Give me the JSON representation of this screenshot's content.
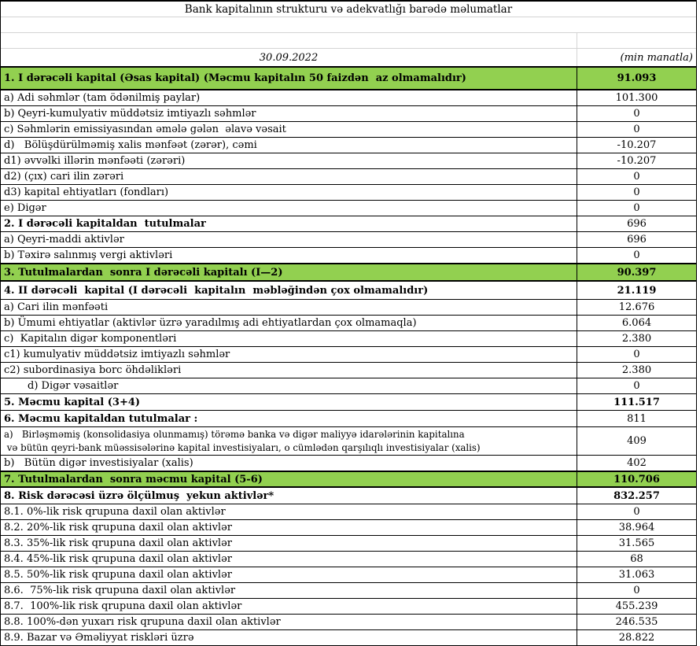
{
  "header": {
    "title": "Bank kapitalının strukturu və adekvatlığı barədə məlumatlar",
    "date": "30.09.2022",
    "unit": "(min manatla)"
  },
  "colors": {
    "section_green": "#92D050",
    "grid_gray": "#d4d4d4",
    "border_black": "#000000"
  },
  "table": {
    "rows": [
      {
        "label": "1. I dərəcəli kapital (Əsas kapital) (Məcmu kapitalın 50 faizdən  az olmamalıdır)",
        "value": "91.093",
        "green": true,
        "bold_label": true,
        "bold_value": true,
        "size": "xl"
      },
      {
        "label": "a) Adi səhmlər (tam ödənilmiş paylar)",
        "value": "101.300"
      },
      {
        "label": "b) Qeyri-kumulyativ müddətsiz imtiyazlı səhmlər",
        "value": "0"
      },
      {
        "label": "c) Səhmlərin emissiyasından əmələ gələn  əlavə vəsait",
        "value": "0"
      },
      {
        "label": "d)   Bölüşdürülməmiş xalis mənfəət (zərər), cəmi",
        "value": "-10.207"
      },
      {
        "label": "d1) əvvəlki illərin mənfəəti (zərəri)",
        "value": "-10.207",
        "small_value": true
      },
      {
        "label": "d2) (çıx) cari ilin zərəri",
        "value": "0"
      },
      {
        "label": "d3) kapital ehtiyatları (fondları)",
        "value": "0"
      },
      {
        "label": "e) Digər",
        "value": "0"
      },
      {
        "label": "2. I dərəcəli kapitaldan  tutulmalar",
        "value": "696",
        "bold_label": true
      },
      {
        "label": "a) Qeyri-maddi aktivlər",
        "value": "696",
        "small_value": true
      },
      {
        "label": "b) Təxirə salınmış vergi aktivləri",
        "value": "0",
        "small_value": true
      },
      {
        "label": "3. Tutulmalardan  sonra I dərəcəli kapitalı (I—2)",
        "value": "90.397",
        "green": true,
        "bold_label": true,
        "bold_value": true,
        "size": "lg"
      },
      {
        "label": "4. II dərəcəli  kapital (I dərəcəli  kapitalın  məbləğindən çox olmamalıdır)",
        "value": "21.119",
        "bold_label": true,
        "bold_value": true,
        "size": "lg"
      },
      {
        "label": "a) Cari ilin mənfəəti",
        "value": "12.676"
      },
      {
        "label": "b) Ümumi ehtiyatlar (aktivlər üzrə yaradılmış adi ehtiyatlardan çox olmamaqla)",
        "value": "6.064"
      },
      {
        "label": "c)  Kapitalın digər komponentləri",
        "value": "2.380"
      },
      {
        "label": "c1) kumulyativ müddətsiz imtiyazlı səhmlər",
        "value": "0",
        "small_value": true
      },
      {
        "label": "c2) subordinasiya borc öhdəlikləri",
        "value": "2.380",
        "small_value": true
      },
      {
        "label": "d) Digər vəsaitlər",
        "value": "0",
        "indent": true
      },
      {
        "label": "5. Məcmu kapital (3+4)",
        "value": "111.517",
        "bold_label": true,
        "bold_value": true,
        "size": "md"
      },
      {
        "label": "6. Məcmu kapitaldan tutulmalar :",
        "value": "811",
        "bold_label": true,
        "size": "md"
      },
      {
        "label": "a)   Birləşməmiş (konsolidasiya olunmamış) törəmə banka və digər maliyyə idarələrinin kapitalına",
        "label2": " və bütün qeyri-bank müəssisələrinə kapital investisiyaları, o cümlədən qarşılıqlı investisiyalar (xalis)",
        "value": "409",
        "small_value": true,
        "size": "two"
      },
      {
        "label": "b)   Bütün digər investisiyalar (xalis)",
        "value": "402",
        "small_value": true
      },
      {
        "label": "7. Tutulmalardan  sonra məcmu kapital (5-6)",
        "value": "110.706",
        "green": true,
        "bold_label": true,
        "bold_value": true,
        "size": "md"
      },
      {
        "label": "8. Risk dərəcəsi üzrə ölçülmuş  yekun aktivlər*",
        "value": "832.257",
        "bold_label": true,
        "bold_value": true,
        "size": "md"
      },
      {
        "label": "8.1. 0%-lik risk qrupuna daxil olan aktivlər",
        "value": "0"
      },
      {
        "label": "8.2. 20%-lik risk qrupuna daxil olan aktivlər",
        "value": "38.964"
      },
      {
        "label": "8.3. 35%-lik risk qrupuna daxil olan aktivlər",
        "value": "31.565"
      },
      {
        "label": "8.4. 45%-lik risk qrupuna daxil olan aktivlər",
        "value": "68"
      },
      {
        "label": "8.5. 50%-lik risk qrupuna daxil olan aktivlər",
        "value": "31.063"
      },
      {
        "label": "8.6.  75%-lik risk qrupuna daxil olan aktivlər",
        "value": "0"
      },
      {
        "label": "8.7.  100%-lik risk qrupuna daxil olan aktivlər",
        "value": "455.239"
      },
      {
        "label": "8.8. 100%-dən yuxarı risk qrupuna daxil olan aktivlər",
        "value": "246.535"
      },
      {
        "label": "8.9. Bazar və Əməliyyat riskləri üzrə",
        "value": "28.822"
      }
    ]
  }
}
